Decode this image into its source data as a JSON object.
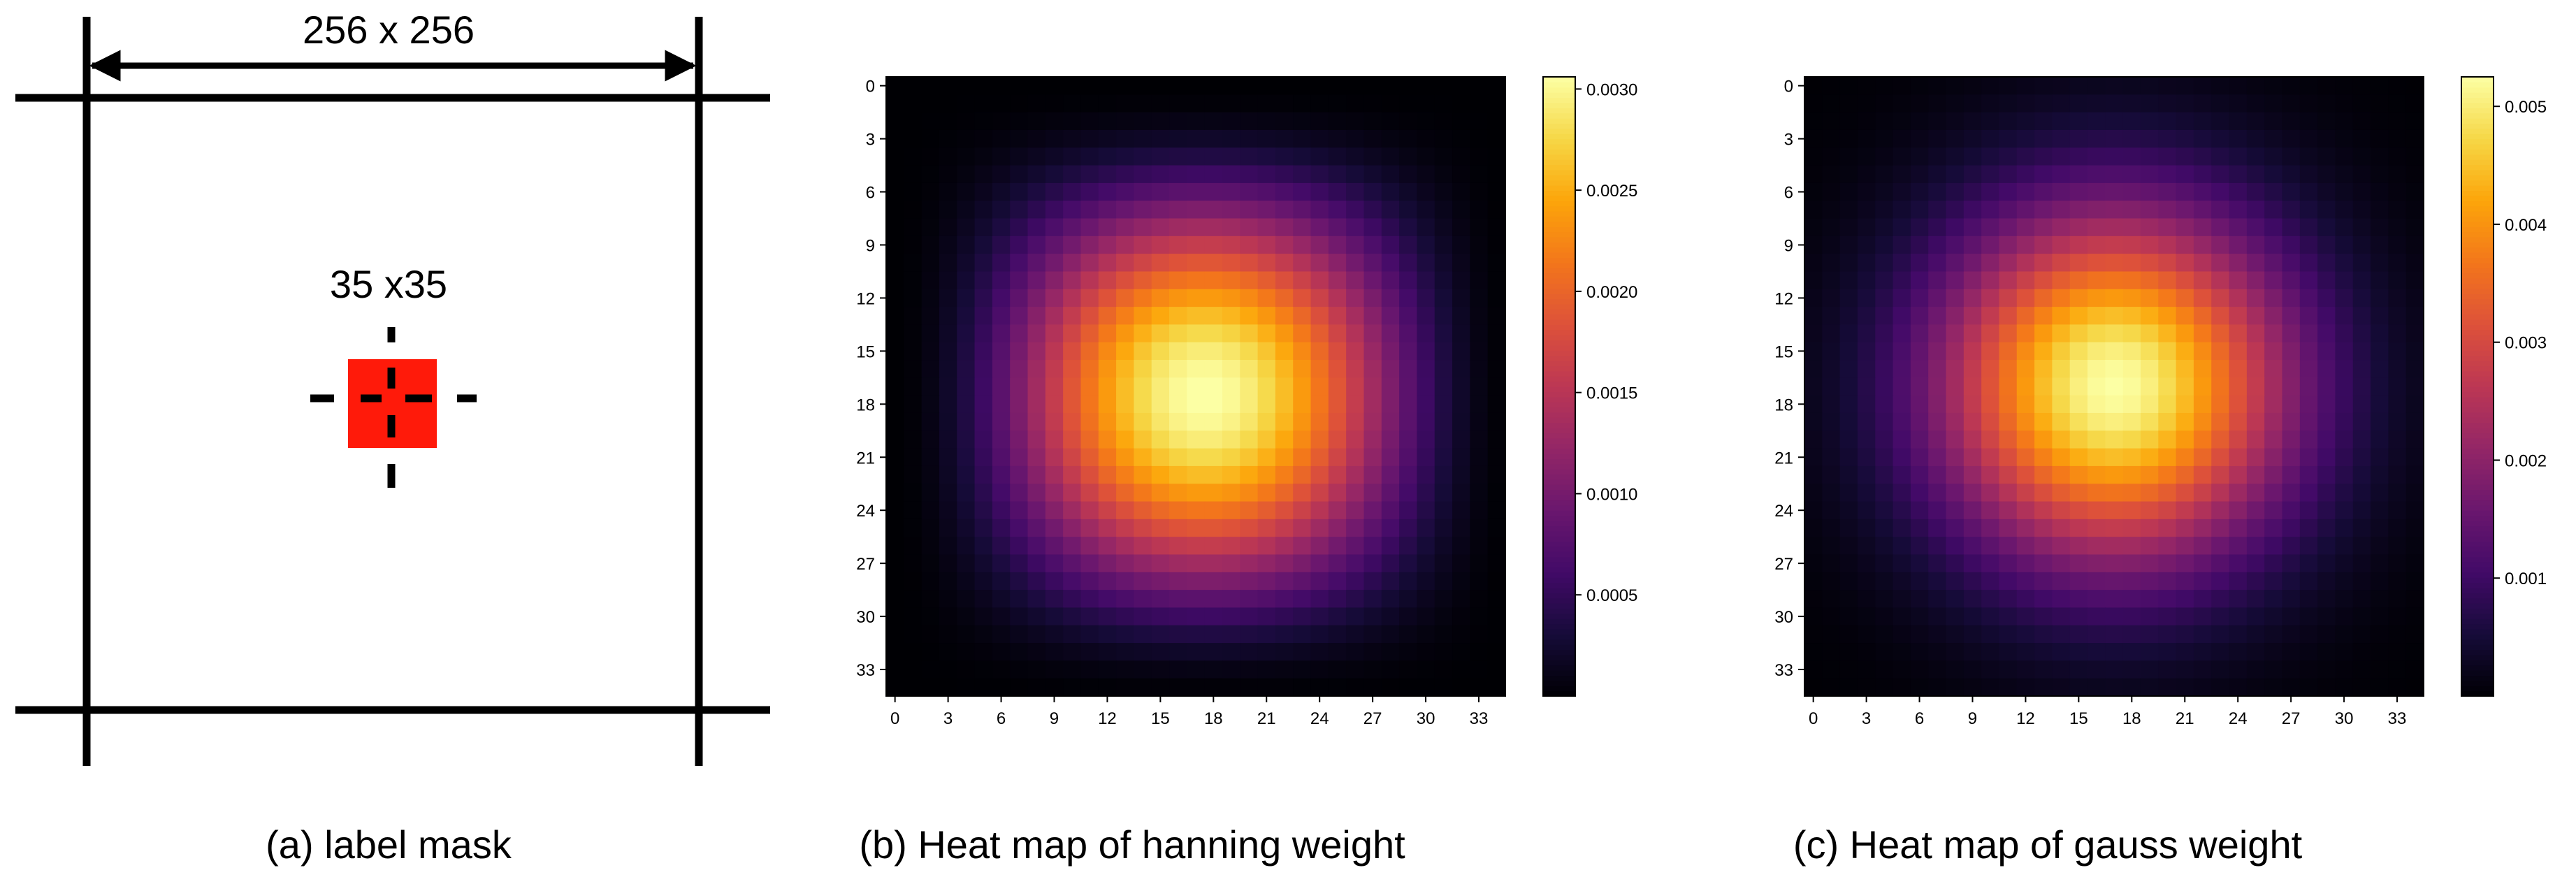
{
  "panel_a": {
    "image_size_label": "256 x 256",
    "patch_size_label": "35 x35",
    "patch_color": "#ff1a0a",
    "line_color": "#000000",
    "caption": "(a) label mask"
  },
  "panels": {
    "b": {
      "caption": "(b) Heat map of hanning weight"
    },
    "c": {
      "caption": "(c) Heat map of gauss weight"
    }
  },
  "chart_data": [
    {
      "type": "heatmap",
      "title": "",
      "xlabel": "",
      "ylabel": "",
      "colormap": "inferno",
      "grid_size": [
        35,
        35
      ],
      "weight_function": "hanning",
      "x_ticks": [
        "0",
        "3",
        "6",
        "9",
        "12",
        "15",
        "18",
        "21",
        "24",
        "27",
        "30",
        "33"
      ],
      "y_ticks": [
        "0",
        "3",
        "6",
        "9",
        "12",
        "15",
        "18",
        "21",
        "24",
        "27",
        "30",
        "33"
      ],
      "color_range": [
        0,
        0.00306
      ],
      "colorbar_ticks": [
        "0.0005",
        "0.0010",
        "0.0015",
        "0.0020",
        "0.0025",
        "0.0030"
      ],
      "peak_cell": [
        17,
        17
      ],
      "peak_value": 0.00306,
      "caption_ref": "b"
    },
    {
      "type": "heatmap",
      "title": "",
      "xlabel": "",
      "ylabel": "",
      "colormap": "inferno",
      "grid_size": [
        35,
        35
      ],
      "weight_function": "gauss",
      "x_ticks": [
        "0",
        "3",
        "6",
        "9",
        "12",
        "15",
        "18",
        "21",
        "24",
        "27",
        "30",
        "33"
      ],
      "y_ticks": [
        "0",
        "3",
        "6",
        "9",
        "12",
        "15",
        "18",
        "21",
        "24",
        "27",
        "30",
        "33"
      ],
      "color_range": [
        0,
        0.00525
      ],
      "colorbar_ticks": [
        "0.001",
        "0.002",
        "0.003",
        "0.004",
        "0.005"
      ],
      "peak_cell": [
        17,
        17
      ],
      "peak_value": 0.00525,
      "caption_ref": "c"
    }
  ]
}
